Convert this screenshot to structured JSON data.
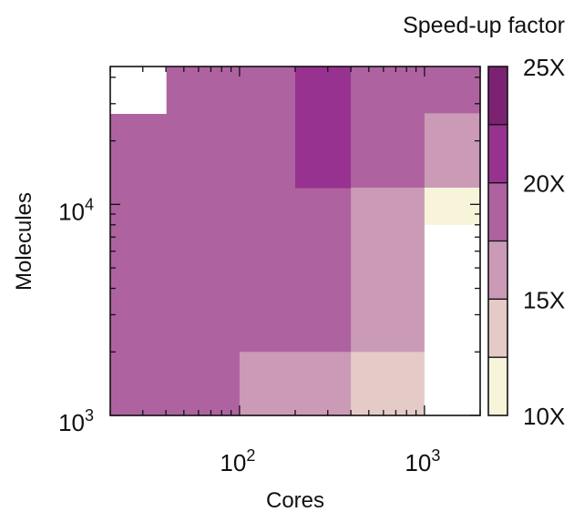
{
  "chart_data": {
    "type": "heatmap",
    "title": "",
    "xlabel": "Cores",
    "ylabel": "Molecules",
    "x_scale": "log",
    "y_scale": "log",
    "xlim": [
      20,
      2000
    ],
    "ylim": [
      1000,
      45000
    ],
    "x_ticks": [
      {
        "value": 100,
        "base": "10",
        "exp": "2"
      },
      {
        "value": 1000,
        "base": "10",
        "exp": "3"
      }
    ],
    "y_ticks": [
      {
        "value": 1000,
        "base": "10",
        "exp": "3"
      },
      {
        "value": 10000,
        "base": "10",
        "exp": "4"
      }
    ],
    "colorbar": {
      "title": "Speed-up factor",
      "range": [
        10,
        25
      ],
      "ticks": [
        {
          "value": 10,
          "label": "10X"
        },
        {
          "value": 15,
          "label": "15X"
        },
        {
          "value": 20,
          "label": "20X"
        },
        {
          "value": 25,
          "label": "25X"
        }
      ],
      "bands": [
        {
          "range": [
            10,
            12.5
          ],
          "color": "#f7f4d9"
        },
        {
          "range": [
            12.5,
            15
          ],
          "color": "#e4cbc7"
        },
        {
          "range": [
            15,
            17.5
          ],
          "color": "#cb9ab6"
        },
        {
          "range": [
            17.5,
            20
          ],
          "color": "#ae63a0"
        },
        {
          "range": [
            20,
            22.5
          ],
          "color": "#983290"
        },
        {
          "range": [
            22.5,
            25
          ],
          "color": "#7b2273"
        }
      ]
    },
    "cells": [
      {
        "x": [
          20,
          40
        ],
        "y": [
          1000,
          27000
        ],
        "value": 18.5
      },
      {
        "x": [
          40,
          100
        ],
        "y": [
          1000,
          45000
        ],
        "value": 18.5
      },
      {
        "x": [
          20,
          40
        ],
        "y": [
          27000,
          45000
        ],
        "value": null
      },
      {
        "x": [
          100,
          200
        ],
        "y": [
          2000,
          45000
        ],
        "value": 18.5
      },
      {
        "x": [
          200,
          400
        ],
        "y": [
          2000,
          12000
        ],
        "value": 18.5
      },
      {
        "x": [
          200,
          400
        ],
        "y": [
          12000,
          45000
        ],
        "value": 21.5
      },
      {
        "x": [
          400,
          1000
        ],
        "y": [
          12000,
          45000
        ],
        "value": 18.5
      },
      {
        "x": [
          1000,
          2000
        ],
        "y": [
          27000,
          45000
        ],
        "value": 18.5
      },
      {
        "x": [
          1000,
          2000
        ],
        "y": [
          12000,
          27000
        ],
        "value": 16.5
      },
      {
        "x": [
          400,
          1000
        ],
        "y": [
          2000,
          12000
        ],
        "value": 16.5
      },
      {
        "x": [
          100,
          400
        ],
        "y": [
          1000,
          2000
        ],
        "value": 16.5
      },
      {
        "x": [
          400,
          1000
        ],
        "y": [
          1000,
          2000
        ],
        "value": 14
      },
      {
        "x": [
          1000,
          2000
        ],
        "y": [
          8000,
          12000
        ],
        "value": 10.5
      },
      {
        "x": [
          1000,
          2000
        ],
        "y": [
          1000,
          8000
        ],
        "value": null
      }
    ]
  }
}
